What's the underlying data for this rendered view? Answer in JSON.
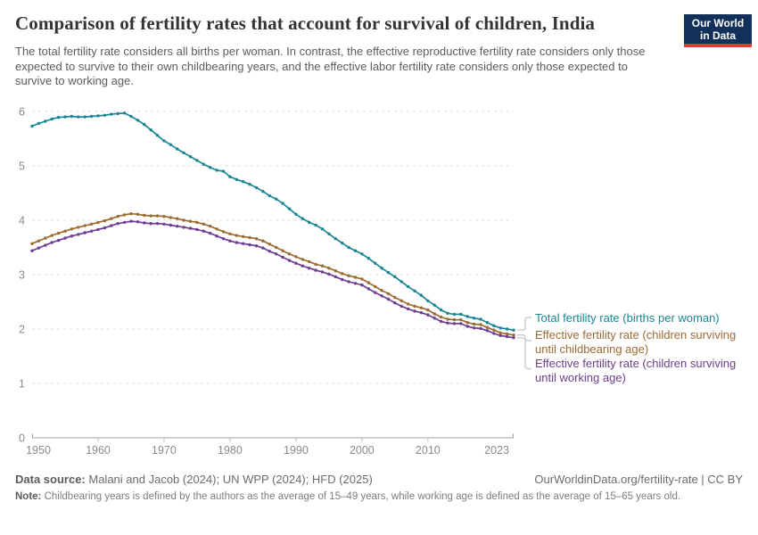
{
  "header": {
    "title": "Comparison of fertility rates that account for survival of children, India",
    "subtitle": "The total fertility rate considers all births per woman. In contrast, the effective reproductive fertility rate considers only those expected to survive to their own childbearing years, and the effective labor fertility rate considers only those expected to survive to working age.",
    "logo": {
      "line1": "Our World",
      "line2": "in Data",
      "bg_color": "#12305a",
      "accent_color": "#dc3e32"
    }
  },
  "chart_data": {
    "type": "line",
    "title": "Comparison of fertility rates that account for survival of children, India",
    "xlabel": "",
    "ylabel": "",
    "ylim": [
      0,
      6
    ],
    "yticks": [
      0,
      1,
      2,
      3,
      4,
      5,
      6
    ],
    "xticks": [
      1950,
      1960,
      1970,
      1980,
      1990,
      2000,
      2010,
      2023
    ],
    "grid": "horizontal-dashed",
    "legend_position": "right-of-plot",
    "markers": true,
    "x": [
      1950,
      1951,
      1952,
      1953,
      1954,
      1955,
      1956,
      1957,
      1958,
      1959,
      1960,
      1961,
      1962,
      1963,
      1964,
      1965,
      1966,
      1967,
      1968,
      1969,
      1970,
      1971,
      1972,
      1973,
      1974,
      1975,
      1976,
      1977,
      1978,
      1979,
      1980,
      1981,
      1982,
      1983,
      1984,
      1985,
      1986,
      1987,
      1988,
      1989,
      1990,
      1991,
      1992,
      1993,
      1994,
      1995,
      1996,
      1997,
      1998,
      1999,
      2000,
      2001,
      2002,
      2003,
      2004,
      2005,
      2006,
      2007,
      2008,
      2009,
      2010,
      2011,
      2012,
      2013,
      2014,
      2015,
      2016,
      2017,
      2018,
      2019,
      2020,
      2021,
      2022,
      2023
    ],
    "series": [
      {
        "name": "Total fertility rate (births per woman)",
        "color": "#1A8693",
        "values": [
          5.73,
          5.78,
          5.82,
          5.86,
          5.89,
          5.9,
          5.91,
          5.9,
          5.9,
          5.91,
          5.92,
          5.93,
          5.95,
          5.96,
          5.97,
          5.91,
          5.84,
          5.76,
          5.66,
          5.56,
          5.46,
          5.39,
          5.31,
          5.24,
          5.17,
          5.1,
          5.03,
          4.97,
          4.92,
          4.9,
          4.8,
          4.75,
          4.71,
          4.66,
          4.6,
          4.53,
          4.45,
          4.39,
          4.31,
          4.21,
          4.11,
          4.03,
          3.96,
          3.91,
          3.84,
          3.75,
          3.66,
          3.58,
          3.5,
          3.44,
          3.38,
          3.3,
          3.21,
          3.12,
          3.04,
          2.96,
          2.87,
          2.78,
          2.7,
          2.62,
          2.52,
          2.44,
          2.35,
          2.29,
          2.27,
          2.27,
          2.23,
          2.2,
          2.18,
          2.12,
          2.06,
          2.02,
          2.0,
          1.98
        ]
      },
      {
        "name": "Effective fertility rate (children surviving until childbearing age)",
        "color": "#9C6B33",
        "values": [
          3.57,
          3.62,
          3.67,
          3.72,
          3.76,
          3.8,
          3.84,
          3.87,
          3.9,
          3.93,
          3.96,
          3.99,
          4.03,
          4.07,
          4.1,
          4.12,
          4.11,
          4.09,
          4.08,
          4.08,
          4.07,
          4.05,
          4.03,
          4.0,
          3.98,
          3.96,
          3.93,
          3.89,
          3.84,
          3.79,
          3.75,
          3.72,
          3.7,
          3.68,
          3.66,
          3.62,
          3.56,
          3.5,
          3.44,
          3.38,
          3.33,
          3.28,
          3.24,
          3.19,
          3.16,
          3.12,
          3.07,
          3.02,
          2.98,
          2.95,
          2.92,
          2.85,
          2.78,
          2.71,
          2.65,
          2.58,
          2.52,
          2.46,
          2.42,
          2.39,
          2.35,
          2.28,
          2.22,
          2.18,
          2.17,
          2.17,
          2.12,
          2.09,
          2.08,
          2.03,
          1.98,
          1.93,
          1.91,
          1.89
        ]
      },
      {
        "name": "Effective fertility rate (children surviving until working age)",
        "color": "#6D3E91",
        "values": [
          3.44,
          3.49,
          3.54,
          3.59,
          3.63,
          3.67,
          3.71,
          3.74,
          3.77,
          3.8,
          3.83,
          3.86,
          3.9,
          3.94,
          3.96,
          3.98,
          3.97,
          3.95,
          3.94,
          3.94,
          3.93,
          3.91,
          3.89,
          3.87,
          3.85,
          3.83,
          3.8,
          3.76,
          3.71,
          3.66,
          3.62,
          3.59,
          3.57,
          3.55,
          3.53,
          3.49,
          3.43,
          3.38,
          3.32,
          3.26,
          3.21,
          3.16,
          3.12,
          3.08,
          3.05,
          3.01,
          2.96,
          2.91,
          2.87,
          2.84,
          2.81,
          2.74,
          2.67,
          2.61,
          2.55,
          2.48,
          2.42,
          2.37,
          2.33,
          2.3,
          2.26,
          2.2,
          2.14,
          2.11,
          2.1,
          2.1,
          2.05,
          2.02,
          2.01,
          1.97,
          1.92,
          1.88,
          1.86,
          1.84
        ]
      }
    ]
  },
  "legend": {
    "items": [
      {
        "color": "#1A8693",
        "lines": [
          "Total fertility rate (births per woman)"
        ]
      },
      {
        "color": "#9C6B33",
        "lines": [
          "Effective fertility rate (children surviving",
          "until childbearing age)"
        ]
      },
      {
        "color": "#6D3E91",
        "lines": [
          "Effective fertility rate (children surviving",
          "until working age)"
        ]
      }
    ]
  },
  "footer": {
    "source_label": "Data source:",
    "source_value": "Malani and Jacob (2024); UN WPP (2024); HFD (2025)",
    "credit": "OurWorldinData.org/fertility-rate | CC BY",
    "note_label": "Note:",
    "note_value": "Childbearing years is defined by the authors as the average of 15–49 years, while working age is defined as the average of 15–65 years old."
  }
}
